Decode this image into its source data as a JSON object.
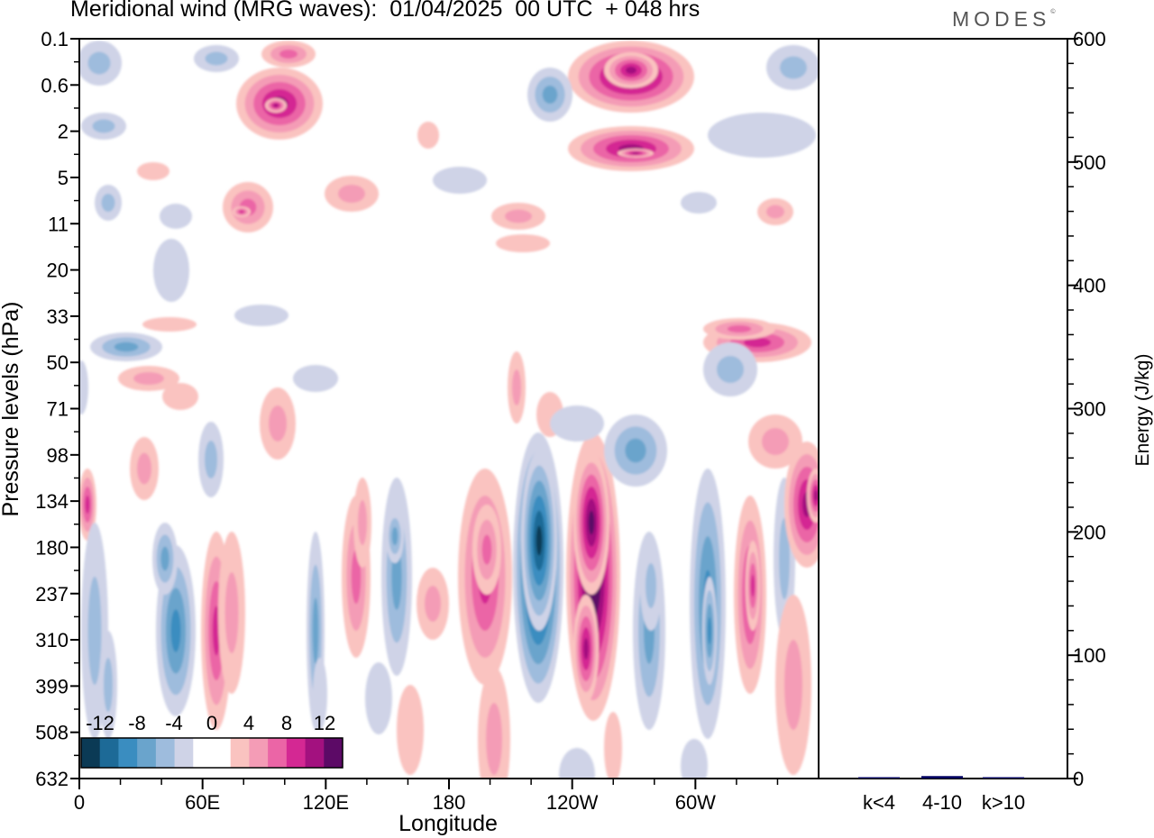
{
  "title": "Meridional wind (MRG waves):  01/04/2025  00 UTC  + 048 hrs",
  "brand": "MODES",
  "brand_mark": "©",
  "chart_data": [
    {
      "type": "heatmap",
      "title": "Meridional wind (MRG waves):  01/04/2025  00 UTC  + 048 hrs",
      "xlabel": "Longitude",
      "ylabel": "Pressure levels (hPa)",
      "x_ticks": [
        "0",
        "60E",
        "120E",
        "180",
        "120W",
        "60W"
      ],
      "x_tick_values": [
        0,
        60,
        120,
        180,
        240,
        300
      ],
      "x_range": [
        0,
        360
      ],
      "y_ticks": [
        "0.1",
        "0.6",
        "2",
        "5",
        "11",
        "20",
        "33",
        "50",
        "71",
        "98",
        "134",
        "180",
        "237",
        "310",
        "399",
        "508",
        "632"
      ],
      "colorbar": {
        "tick_labels": [
          "-12",
          "-8",
          "-4",
          "0",
          "4",
          "8",
          "12"
        ],
        "levels": [
          -14,
          -12,
          -10,
          -8,
          -6,
          -4,
          -2,
          2,
          4,
          6,
          8,
          10,
          12,
          14
        ],
        "colors": [
          "#0b3a55",
          "#1d6a97",
          "#3a8dc0",
          "#6aa4cc",
          "#9ebcdd",
          "#cfd3e7",
          "#ffffff",
          "#ffffff",
          "#fac3c0",
          "#f49cb6",
          "#eb65a6",
          "#d42893",
          "#a3117f",
          "#5c0a66"
        ]
      },
      "features": [
        {
          "lon": 0,
          "level": "134",
          "sign": "positive",
          "peak": 8
        },
        {
          "lon": 50,
          "level": "310",
          "sign": "negative",
          "peak": -8
        },
        {
          "lon": 67,
          "level": "310",
          "sign": "positive",
          "peak": 8
        },
        {
          "lon": 140,
          "level": "180",
          "sign": "positive",
          "peak": 6
        },
        {
          "lon": 154,
          "level": "180",
          "sign": "negative",
          "peak": -6
        },
        {
          "lon": 198,
          "level": "237",
          "sign": "positive",
          "peak": 8
        },
        {
          "lon": 224,
          "level": "180",
          "sign": "negative",
          "peak": -14
        },
        {
          "lon": 250,
          "level": "180",
          "sign": "positive",
          "peak": 14
        },
        {
          "lon": 308,
          "level": "310",
          "sign": "negative",
          "peak": -8
        },
        {
          "lon": 326,
          "level": "237",
          "sign": "positive",
          "peak": 8
        },
        {
          "lon": 357,
          "level": "134",
          "sign": "positive",
          "peak": 10
        },
        {
          "lon": 270,
          "level": "0.6",
          "sign": "positive",
          "peak": 10
        },
        {
          "lon": 95,
          "level": "0.6",
          "sign": "positive",
          "peak": 8
        }
      ]
    },
    {
      "type": "bar",
      "ylabel": "Energy (J/kg)",
      "categories": [
        "k<4",
        "4-10",
        "k>10"
      ],
      "values": [
        0,
        2,
        0
      ],
      "ylim": [
        0,
        600
      ],
      "y_ticks": [
        "0",
        "100",
        "200",
        "300",
        "400",
        "500",
        "600"
      ],
      "bar_color": "#000060"
    }
  ]
}
